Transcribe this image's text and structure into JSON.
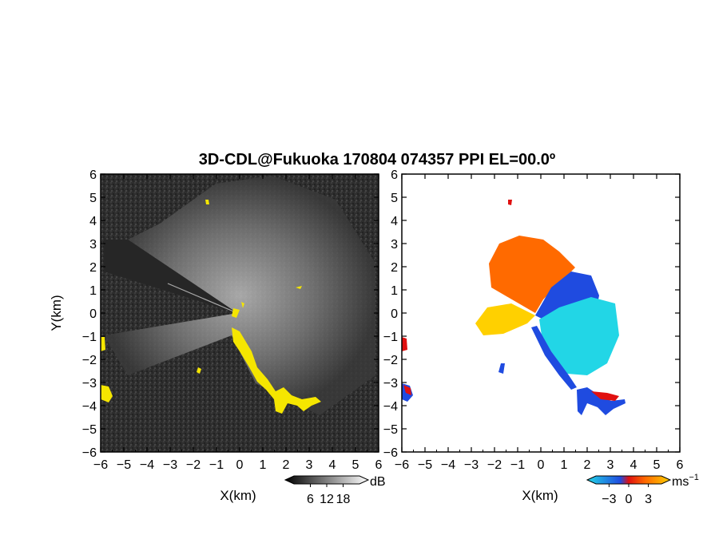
{
  "chart_data": [
    {
      "type": "heatmap",
      "panel": "left",
      "title": "3D-CDL@Fukuoka 170804 074357 PPI EL=00.0º",
      "xlabel": "X(km)",
      "ylabel": "Y(km)",
      "xlim": [
        -6,
        6
      ],
      "ylim": [
        -6,
        6
      ],
      "x_ticks": [
        "−6",
        "−5",
        "−4",
        "−3",
        "−2",
        "−1",
        "0",
        "1",
        "2",
        "3",
        "4",
        "5",
        "6"
      ],
      "y_ticks": [
        "6",
        "5",
        "4",
        "3",
        "2",
        "1",
        "0",
        "−1",
        "−2",
        "−3",
        "−4",
        "−5",
        "−6"
      ],
      "colorbar": {
        "unit": "dB",
        "ticks": [
          "6",
          "12",
          "18"
        ],
        "range": [
          0,
          24
        ]
      },
      "colors": {
        "background": "#2f2f2f",
        "echo": "#f5e600"
      }
    },
    {
      "type": "heatmap",
      "panel": "right",
      "xlabel": "X(km)",
      "xlim": [
        -6,
        6
      ],
      "ylim": [
        -6,
        6
      ],
      "x_ticks": [
        "−6",
        "−5",
        "−4",
        "−3",
        "−2",
        "−1",
        "0",
        "1",
        "2",
        "3",
        "4",
        "5",
        "6"
      ],
      "y_ticks": [
        "6",
        "5",
        "4",
        "3",
        "2",
        "1",
        "0",
        "−1",
        "−2",
        "−3",
        "−4",
        "−5",
        "−6"
      ],
      "colorbar": {
        "unit": "ms",
        "unit_sup": "−1",
        "ticks": [
          "−3",
          "0",
          "3"
        ],
        "range": [
          -5,
          5
        ]
      },
      "colors": {
        "negative": "#1f4be0",
        "light_negative": "#22d6e6",
        "positive": "#ff6a00",
        "light_positive": "#ffd000",
        "strong_positive": "#e01010"
      }
    }
  ]
}
